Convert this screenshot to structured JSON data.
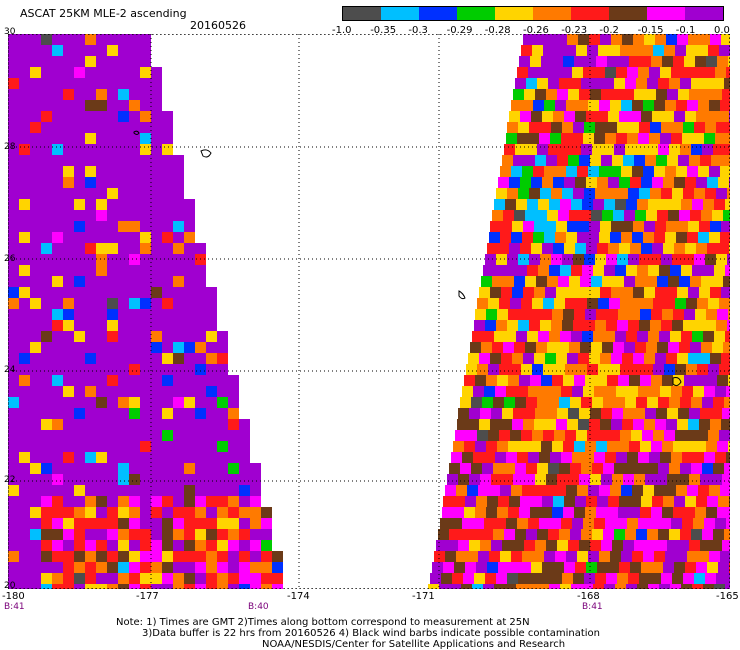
{
  "header": {
    "title": "ASCAT 25KM MLE-2 ascending",
    "date": "20160526"
  },
  "colorbar": {
    "segments": [
      "#4d4d4d",
      "#00bfff",
      "#0030ff",
      "#00cc00",
      "#ffd400",
      "#ff7a00",
      "#ff1a1a",
      "#6b3a18",
      "#ff00ff",
      "#a000d0"
    ],
    "labels": [
      "-1.0",
      "-0.35",
      "-0.3",
      "-0.29",
      "-0.28",
      "-0.26",
      "-0.23",
      "-0.2",
      "-0.15",
      "-0.1",
      "0.0"
    ]
  },
  "map": {
    "x_ticks": [
      "-180",
      "-177",
      "-174",
      "-171",
      "-168",
      "-165"
    ],
    "y_ticks": [
      "30",
      "28",
      "26",
      "24",
      "22",
      "20"
    ],
    "time_labels": [
      "B:41",
      "B:40",
      "B:41"
    ],
    "swath_colors": [
      "#a000d0",
      "#ffd400",
      "#ff7a00",
      "#ff1a1a",
      "#6b3a18",
      "#ff00ff",
      "#0030ff",
      "#00bfff",
      "#00cc00",
      "#4d4d4d"
    ]
  },
  "footer": {
    "note_line1": "Note: 1) Times are GMT 2)Times along bottom correspond to measurement at 25N",
    "note_line2": "3)Data buffer is 22 hrs from 20160526 4) Black wind barbs indicate possible contamination",
    "note_line3": "NOAA/NESDIS/Center for Satellite Applications and Research"
  }
}
